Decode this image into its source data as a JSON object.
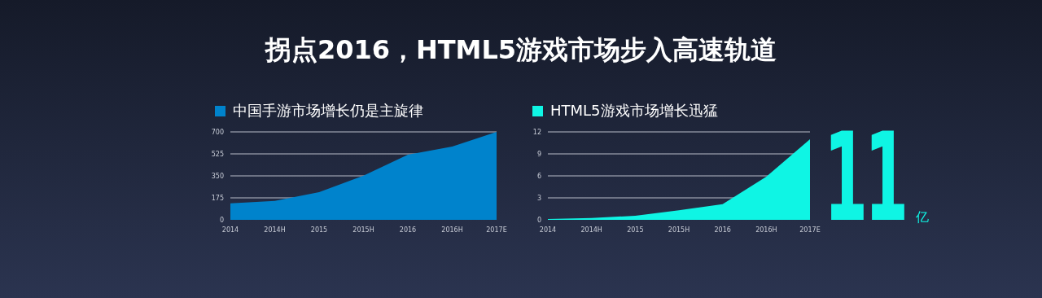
{
  "chart_data": [
    {
      "type": "area",
      "title": "拐点2016，HTML5游戏市场步入高速轨道",
      "categories": [
        "2014",
        "2014H",
        "2015",
        "2015H",
        "2016",
        "2016H",
        "2017E"
      ],
      "series": [
        {
          "name": "中国手游市场增长仍是主旋律",
          "color": "#0083cc",
          "values": [
            132,
            150,
            220,
            352,
            519,
            583,
            700
          ]
        }
      ],
      "ylim": [
        0,
        700
      ],
      "yticks": [
        0,
        175,
        350,
        525,
        700
      ],
      "grid": "y",
      "legend": "top left"
    },
    {
      "type": "area",
      "categories": [
        "2014",
        "2014H",
        "2015",
        "2015H",
        "2016",
        "2016H",
        "2017E"
      ],
      "series": [
        {
          "name": "HTML5游戏市场增长迅猛",
          "color": "#0ff5e4",
          "values": [
            0.1,
            0.25,
            0.55,
            1.3,
            2.15,
            5.9,
            11
          ]
        }
      ],
      "ylim": [
        0,
        12
      ],
      "yticks": [
        0,
        3,
        6,
        9,
        12
      ],
      "grid": "y",
      "legend": "top left",
      "annotations": [
        "11",
        "亿"
      ]
    }
  ]
}
